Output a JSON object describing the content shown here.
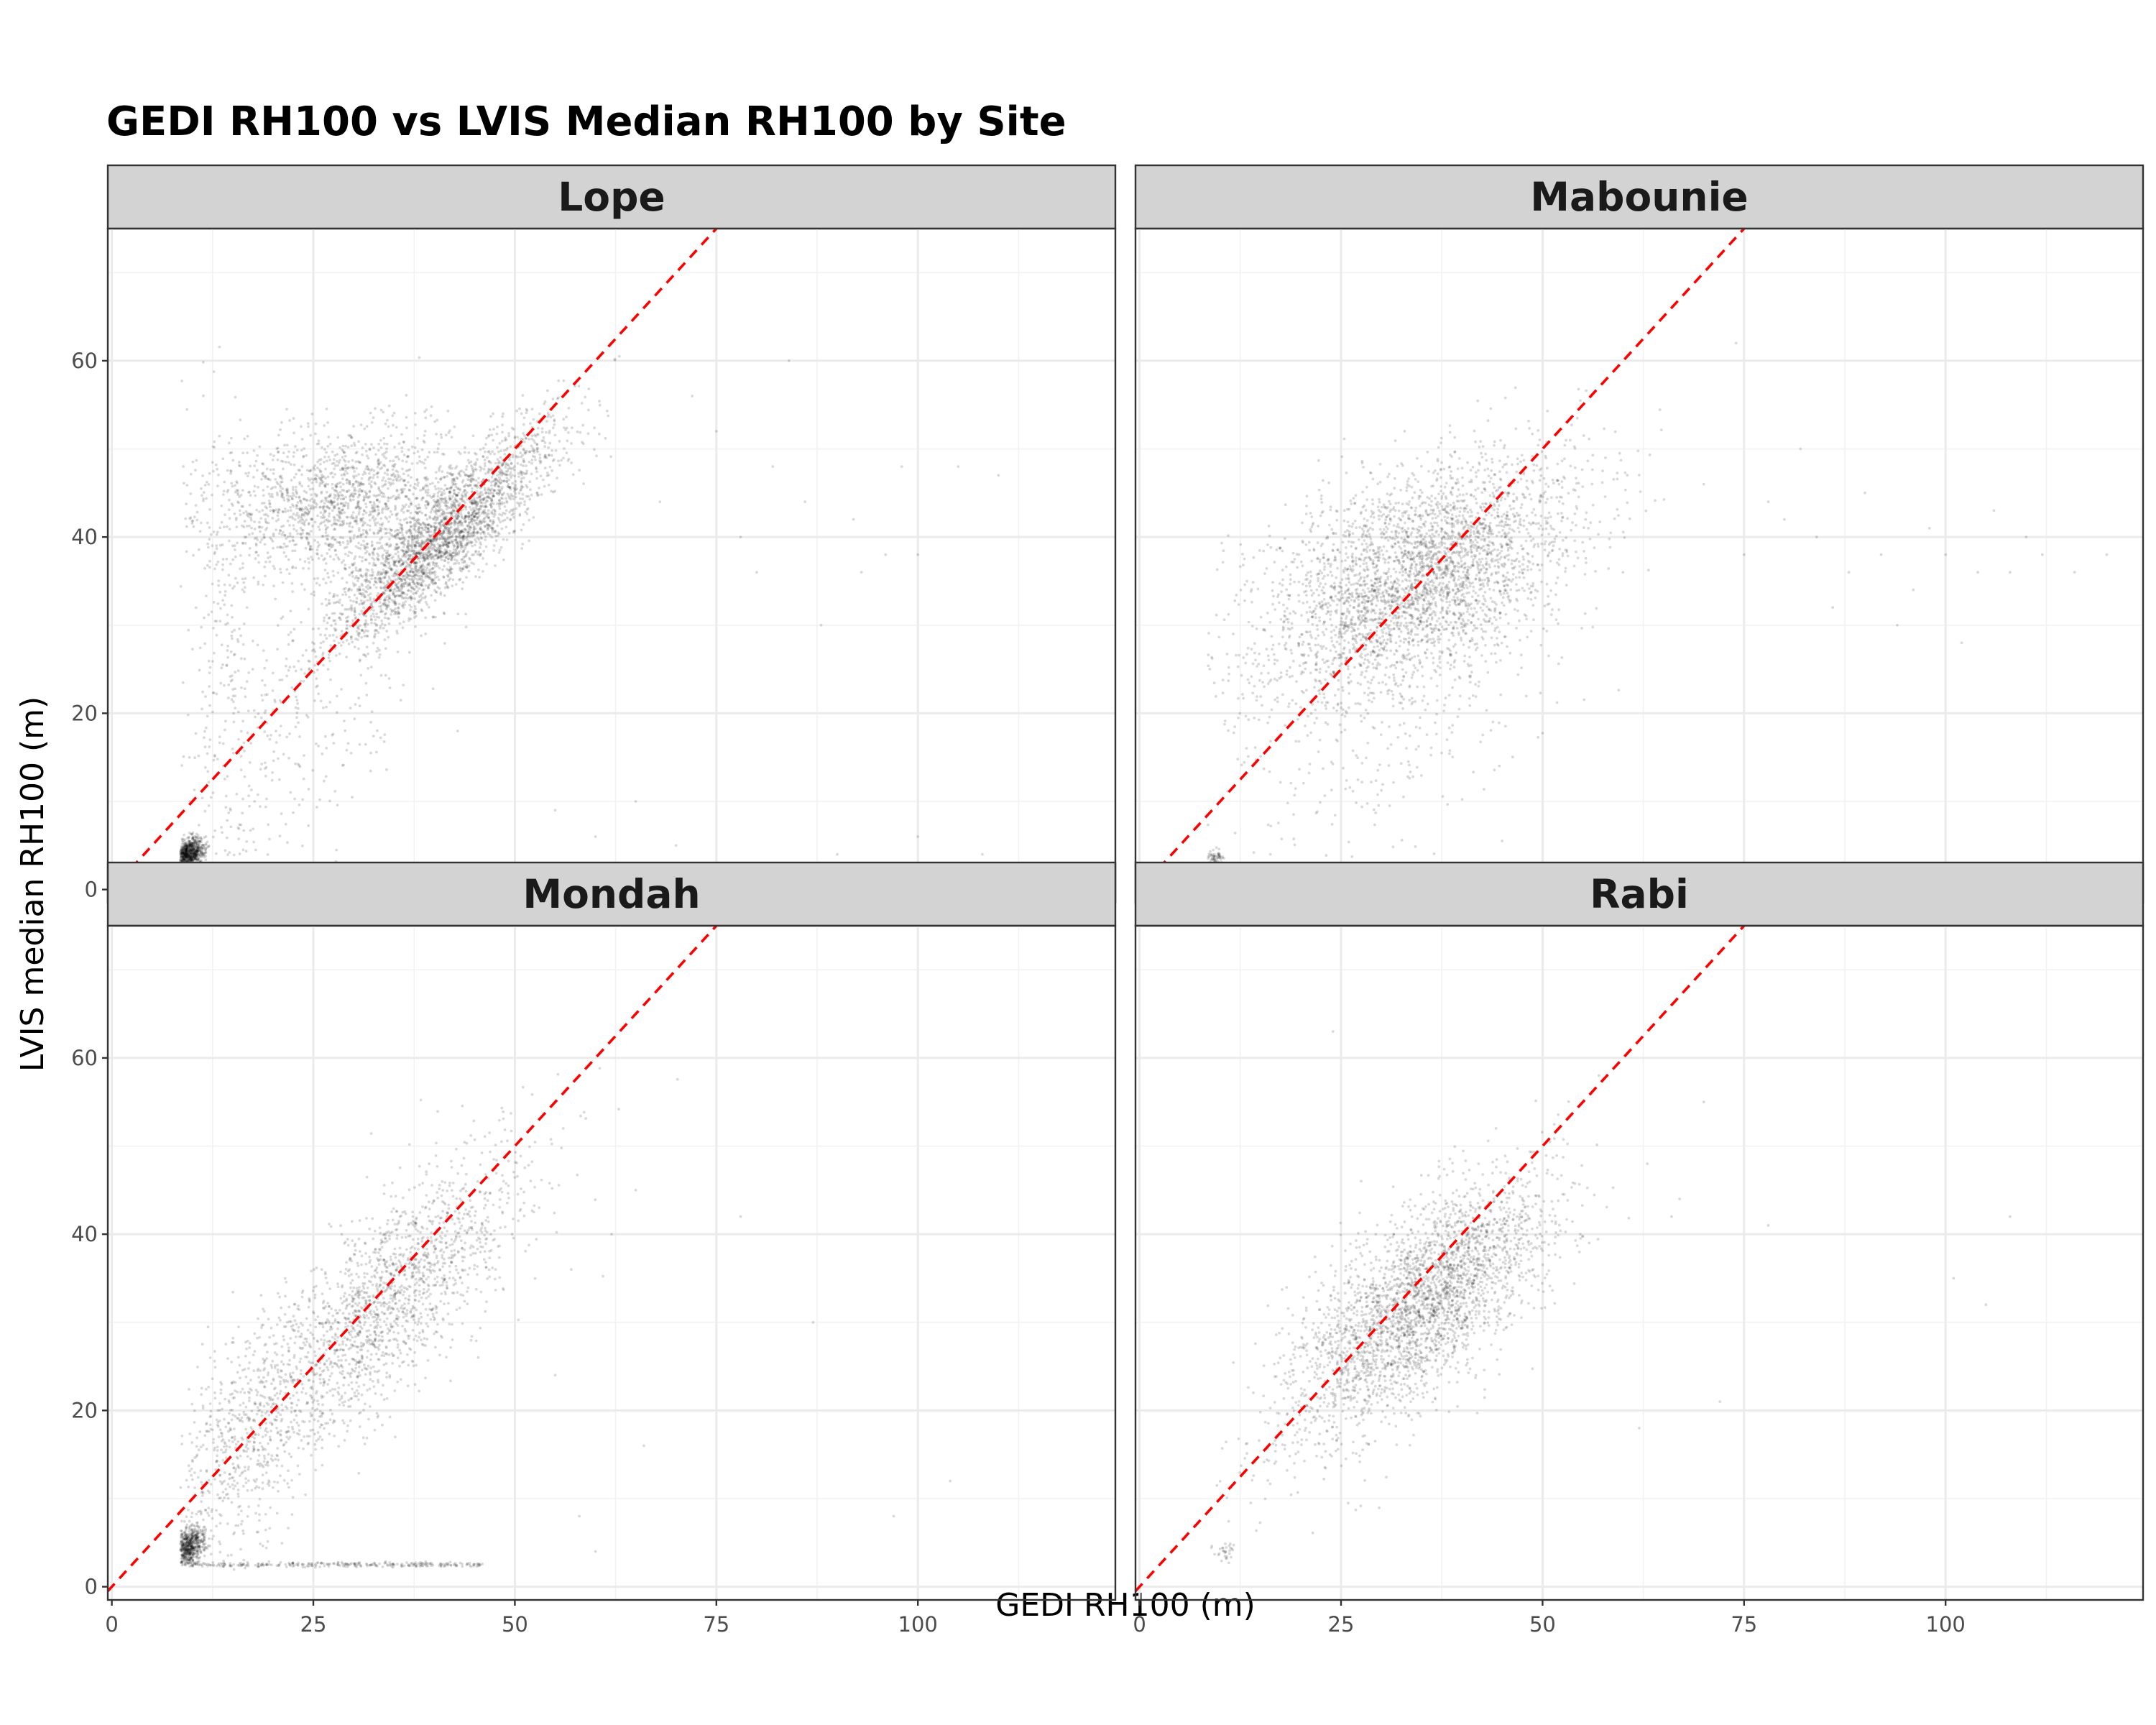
{
  "chart_data": {
    "type": "scatter",
    "title": "GEDI RH100 vs LVIS Median RH100 by Site",
    "xlabel": "GEDI RH100 (m)",
    "ylabel": "LVIS median RH100 (m)",
    "xlim": [
      -0.5,
      124.5
    ],
    "ylim": [
      -1.5,
      75
    ],
    "x_ticks": [
      "0",
      "25",
      "50",
      "75",
      "100"
    ],
    "y_ticks": [
      "0",
      "20",
      "40",
      "60"
    ],
    "x_tick_values": [
      0,
      25,
      50,
      75,
      100
    ],
    "y_tick_values": [
      0,
      20,
      40,
      60
    ],
    "grid": true,
    "point_color": "#000000",
    "point_alpha": 0.15,
    "reference_line": {
      "type": "1:1",
      "color": "#ff0000",
      "style": "dashed"
    },
    "facets": [
      {
        "name": "Lope",
        "clusters": [
          {
            "cx": 9.5,
            "cy": 4,
            "sx": 1.0,
            "sy": 0.9,
            "rho": 0.3,
            "n": 900
          },
          {
            "cx": 41,
            "cy": 40,
            "sx": 7.0,
            "sy": 6.0,
            "rho": 0.85,
            "n": 2600
          },
          {
            "cx": 28,
            "cy": 44,
            "sx": 8.0,
            "sy": 4.0,
            "rho": 0.2,
            "n": 1500
          },
          {
            "cx": 22,
            "cy": 18,
            "sx": 9.0,
            "sy": 12,
            "rho": 0.7,
            "n": 350
          },
          {
            "cx": 14,
            "cy": 32,
            "sx": 3.0,
            "sy": 12,
            "rho": 0.0,
            "n": 200
          }
        ],
        "outliers": [
          [
            78,
            40
          ],
          [
            82,
            48
          ],
          [
            86,
            44
          ],
          [
            92,
            42
          ],
          [
            96,
            38
          ],
          [
            98,
            48
          ],
          [
            105,
            48
          ],
          [
            110,
            47
          ],
          [
            80,
            36
          ],
          [
            88,
            30
          ],
          [
            72,
            56
          ],
          [
            84,
            60
          ],
          [
            93,
            36
          ],
          [
            100,
            38
          ],
          [
            65,
            10
          ],
          [
            80,
            3
          ],
          [
            90,
            4
          ],
          [
            100,
            6
          ],
          [
            105,
            3
          ],
          [
            108,
            4
          ],
          [
            70,
            5
          ],
          [
            60,
            6
          ],
          [
            55,
            9
          ],
          [
            68,
            44
          ],
          [
            75,
            52
          ]
        ]
      },
      {
        "name": "Mabounie",
        "clusters": [
          {
            "cx": 35,
            "cy": 36,
            "sx": 9.5,
            "sy": 6.5,
            "rho": 0.45,
            "n": 3200
          },
          {
            "cx": 30,
            "cy": 22,
            "sx": 10.0,
            "sy": 9.0,
            "rho": 0.3,
            "n": 450
          },
          {
            "cx": 9.5,
            "cy": 3.5,
            "sx": 0.6,
            "sy": 0.6,
            "rho": 0.0,
            "n": 80
          }
        ],
        "outliers": [
          [
            75,
            38
          ],
          [
            80,
            42
          ],
          [
            84,
            40
          ],
          [
            88,
            36
          ],
          [
            92,
            38
          ],
          [
            96,
            34
          ],
          [
            100,
            38
          ],
          [
            104,
            36
          ],
          [
            108,
            36
          ],
          [
            112,
            38
          ],
          [
            116,
            36
          ],
          [
            120,
            38
          ],
          [
            78,
            44
          ],
          [
            86,
            32
          ],
          [
            94,
            30
          ],
          [
            102,
            28
          ],
          [
            110,
            40
          ],
          [
            70,
            46
          ],
          [
            74,
            62
          ],
          [
            82,
            50
          ],
          [
            90,
            45
          ],
          [
            98,
            41
          ],
          [
            106,
            43
          ]
        ],
        "floor_band": {
          "x": [
            12,
            58
          ],
          "y": 2.5,
          "n": 260
        }
      },
      {
        "name": "Mondah",
        "clusters": [
          {
            "cx": 9.5,
            "cy": 4.5,
            "sx": 1.0,
            "sy": 1.1,
            "rho": 0.3,
            "n": 650
          },
          {
            "cx": 33,
            "cy": 31,
            "sx": 9.5,
            "sy": 9.0,
            "rho": 0.8,
            "n": 1900
          },
          {
            "cx": 16,
            "cy": 16,
            "sx": 4.0,
            "sy": 7.0,
            "rho": 0.4,
            "n": 450
          }
        ],
        "outliers": [
          [
            62,
            40
          ],
          [
            65,
            45
          ],
          [
            78,
            42
          ],
          [
            87,
            30
          ],
          [
            97,
            8
          ],
          [
            104,
            12
          ],
          [
            60,
            4
          ],
          [
            58,
            8
          ],
          [
            66,
            16
          ],
          [
            56,
            52
          ],
          [
            55,
            24
          ],
          [
            57,
            36
          ]
        ],
        "floor_band": {
          "x": [
            10,
            46
          ],
          "y": 2.5,
          "n": 280
        }
      },
      {
        "name": "Rabi",
        "clusters": [
          {
            "cx": 36,
            "cy": 33,
            "sx": 7.5,
            "sy": 6.5,
            "rho": 0.65,
            "n": 2500
          },
          {
            "cx": 27,
            "cy": 25,
            "sx": 7.0,
            "sy": 7.0,
            "rho": 0.5,
            "n": 500
          },
          {
            "cx": 10.5,
            "cy": 4,
            "sx": 0.8,
            "sy": 0.7,
            "rho": 0.0,
            "n": 30
          }
        ],
        "outliers": [
          [
            62,
            18
          ],
          [
            66,
            42
          ],
          [
            70,
            55
          ],
          [
            72,
            21
          ],
          [
            78,
            41
          ],
          [
            101,
            35
          ],
          [
            105,
            32
          ],
          [
            108,
            42
          ],
          [
            24,
            63
          ],
          [
            57,
            58
          ],
          [
            67,
            44
          ],
          [
            63,
            48
          ]
        ]
      }
    ]
  }
}
